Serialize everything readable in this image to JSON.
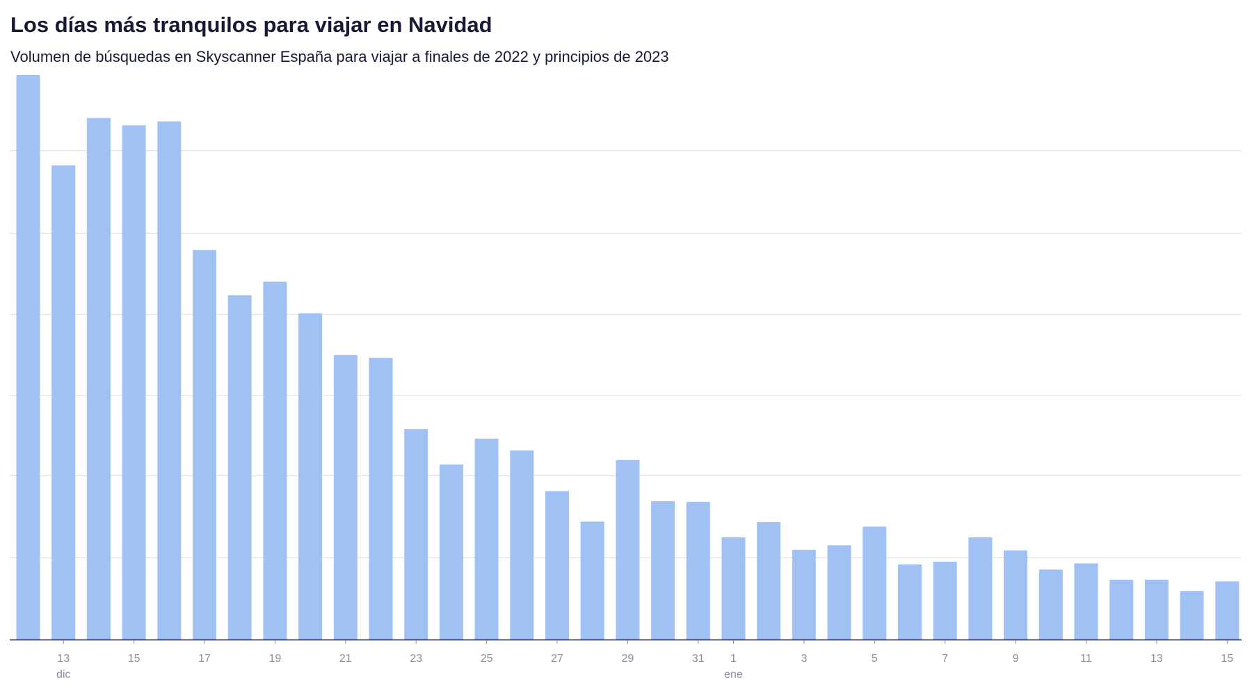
{
  "chart_data": {
    "type": "bar",
    "title": "Los días más tranquilos para viajar en Navidad",
    "subtitle": "Volumen de búsquedas en Skyscanner España para viajar a finales de 2022 y principios de 2023",
    "xlabel": "",
    "ylabel": "",
    "ylim": [
      0,
      100
    ],
    "grid": true,
    "categories": [
      "12",
      "13",
      "14",
      "15",
      "16",
      "17",
      "18",
      "19",
      "20",
      "21",
      "22",
      "23",
      "24",
      "25",
      "26",
      "27",
      "28",
      "29",
      "30",
      "31",
      "1",
      "2",
      "3",
      "4",
      "5",
      "6",
      "7",
      "8",
      "9",
      "10",
      "11",
      "12",
      "13",
      "14",
      "15"
    ],
    "tick_labels": [
      "13",
      "15",
      "17",
      "19",
      "21",
      "23",
      "25",
      "27",
      "29",
      "31",
      "1",
      "3",
      "5",
      "7",
      "9",
      "11",
      "13",
      "15"
    ],
    "tick_indices": [
      1,
      3,
      5,
      7,
      9,
      11,
      13,
      15,
      17,
      19,
      20,
      22,
      24,
      26,
      28,
      30,
      32,
      34
    ],
    "month_labels": [
      {
        "label": "dic",
        "index": 1
      },
      {
        "label": "ene",
        "index": 20
      }
    ],
    "values": [
      100,
      84,
      92.4,
      91.1,
      91.8,
      69,
      61,
      63.4,
      57.8,
      50.4,
      49.9,
      37.3,
      31,
      35.6,
      33.5,
      26.3,
      20.9,
      31.8,
      24.5,
      24.4,
      18.1,
      20.8,
      15.9,
      16.7,
      20,
      13.3,
      13.8,
      18.1,
      15.8,
      12.4,
      13.5,
      10.6,
      10.6,
      8.6,
      10.3
    ],
    "colors": {
      "bar": "#9fc1f3",
      "grid": "#d9dce3",
      "axis": "#161b35",
      "tick_text": "#8a8ea0"
    }
  }
}
